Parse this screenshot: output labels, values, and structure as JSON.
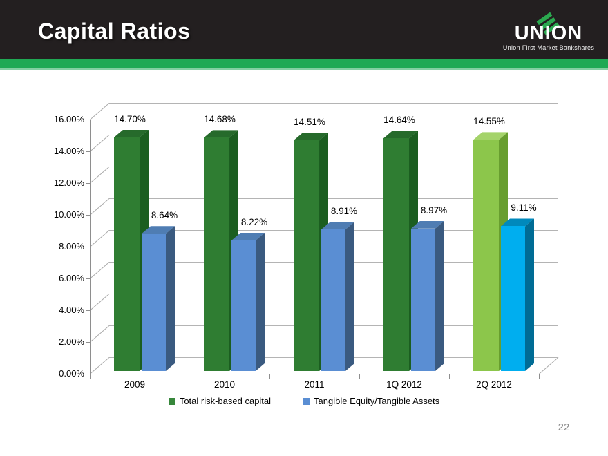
{
  "header": {
    "title": "Capital Ratios",
    "logo": {
      "name": "UNION",
      "tagline": "Union First Market Bankshares",
      "stripe_color": "#2BA84F"
    },
    "background_color": "#231F20",
    "accent_color": "#1FA954"
  },
  "page_number": "22",
  "chart_data": {
    "type": "bar",
    "variant": "3d-column",
    "title": "",
    "xlabel": "",
    "ylabel": "",
    "categories": [
      "2009",
      "2010",
      "2011",
      "1Q 2012",
      "2Q 2012"
    ],
    "series": [
      {
        "name": "Total risk-based capital",
        "values": [
          14.7,
          14.68,
          14.51,
          14.64,
          14.55
        ],
        "data_labels": [
          "14.70%",
          "14.68%",
          "14.51%",
          "14.64%",
          "14.55%"
        ]
      },
      {
        "name": "Tangible Equity/Tangible Assets",
        "values": [
          8.64,
          8.22,
          8.91,
          8.97,
          9.11
        ],
        "data_labels": [
          "8.64%",
          "8.22%",
          "8.91%",
          "8.97%",
          "9.11%"
        ]
      }
    ],
    "ylim": [
      0,
      16
    ],
    "ytick_step": 2,
    "ytick_labels": [
      "0.00%",
      "2.00%",
      "4.00%",
      "6.00%",
      "8.00%",
      "10.00%",
      "12.00%",
      "14.00%",
      "16.00%"
    ],
    "gridlines": true,
    "legend_position": "bottom",
    "series_colors": {
      "green": {
        "front": "#2F7D32",
        "side": "#1B5E20",
        "top": "#266A2B"
      },
      "green_last": {
        "front": "#8CC64B",
        "side": "#689E2F",
        "top": "#A4D36A"
      },
      "blue": {
        "front": "#5A8ED3",
        "side": "#3A5A80",
        "top": "#4F7DB3"
      },
      "blue_last": {
        "front": "#00AEEF",
        "side": "#006C95",
        "top": "#0089BC"
      }
    },
    "legend_swatch_colors": [
      "#37873B",
      "#5A8ED3"
    ]
  }
}
